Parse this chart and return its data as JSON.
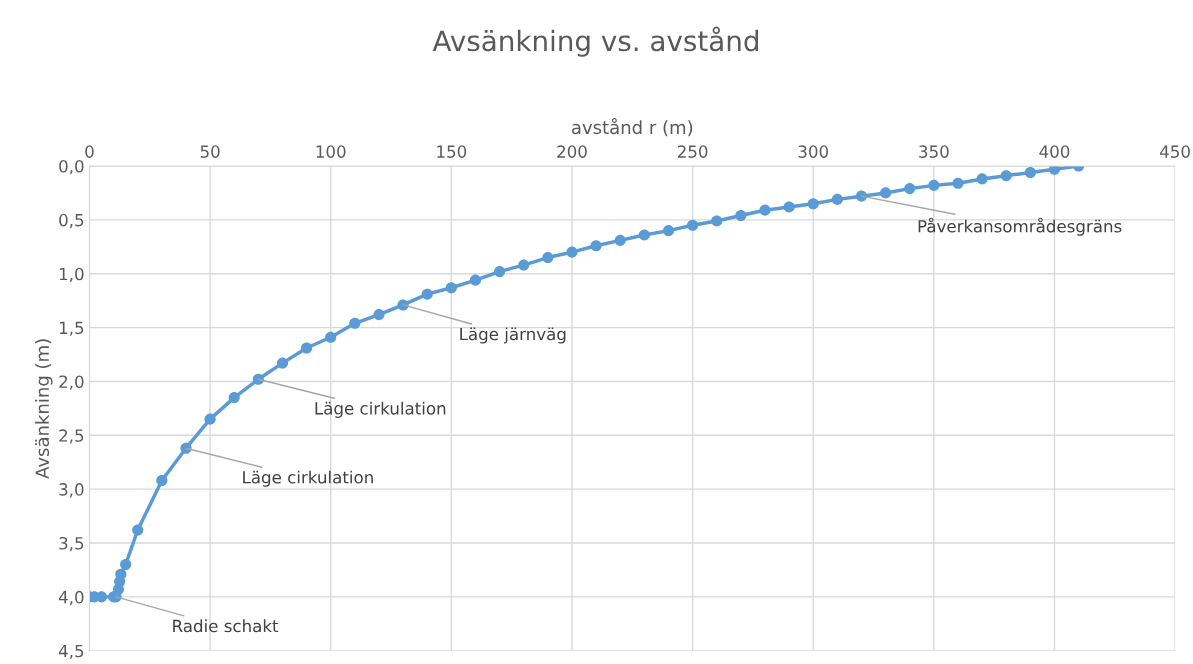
{
  "chart_data": {
    "type": "line",
    "title": "Avsänkning vs. avstånd",
    "xlabel": "avstånd r (m)",
    "ylabel": "Avsänkning (m)",
    "x": [
      0,
      2,
      5,
      10,
      11,
      12,
      12.5,
      13,
      15,
      20,
      30,
      40,
      50,
      60,
      70,
      80,
      90,
      100,
      110,
      120,
      130,
      140,
      150,
      160,
      170,
      180,
      190,
      200,
      210,
      220,
      230,
      240,
      250,
      260,
      270,
      280,
      290,
      300,
      310,
      320,
      330,
      340,
      350,
      360,
      370,
      380,
      390,
      400,
      410
    ],
    "series": [
      {
        "color": "#5b9bd5",
        "values": [
          4.0,
          4.0,
          4.0,
          4.0,
          4.0,
          3.93,
          3.86,
          3.79,
          3.7,
          3.38,
          2.92,
          2.62,
          2.35,
          2.15,
          1.98,
          1.83,
          1.69,
          1.59,
          1.46,
          1.38,
          1.29,
          1.19,
          1.13,
          1.06,
          0.98,
          0.92,
          0.85,
          0.8,
          0.74,
          0.69,
          0.64,
          0.6,
          0.55,
          0.51,
          0.46,
          0.41,
          0.38,
          0.35,
          0.31,
          0.28,
          0.25,
          0.21,
          0.18,
          0.16,
          0.12,
          0.09,
          0.06,
          0.03,
          0.0
        ]
      }
    ],
    "xlim": [
      0,
      450
    ],
    "xticks": [
      0,
      50,
      100,
      150,
      200,
      250,
      300,
      350,
      400,
      450
    ],
    "ylim": [
      4.5,
      0
    ],
    "yticks": [
      {
        "value": 0,
        "label": "0,0"
      },
      {
        "value": 0.5,
        "label": "0,5"
      },
      {
        "value": 1,
        "label": "1,0"
      },
      {
        "value": 1.5,
        "label": "1,5"
      },
      {
        "value": 2,
        "label": "2,0"
      },
      {
        "value": 2.5,
        "label": "2,5"
      },
      {
        "value": 3,
        "label": "3,0"
      },
      {
        "value": 3.5,
        "label": "3,5"
      },
      {
        "value": 4,
        "label": "4,0"
      },
      {
        "value": 4.5,
        "label": "4,5"
      }
    ],
    "annotations": [
      {
        "text": "Radie schakt",
        "x": 11,
        "y": 4.0
      },
      {
        "text": "Läge cirkulation",
        "x": 40,
        "y": 2.62
      },
      {
        "text": "Läge cirkulation",
        "x": 70,
        "y": 1.98
      },
      {
        "text": "Läge järnväg",
        "x": 130,
        "y": 1.29
      },
      {
        "text": "Påverkansområdesgräns",
        "x": 320,
        "y": 0.28
      }
    ],
    "grid": true,
    "marker": "circle",
    "line_style": "solid"
  }
}
